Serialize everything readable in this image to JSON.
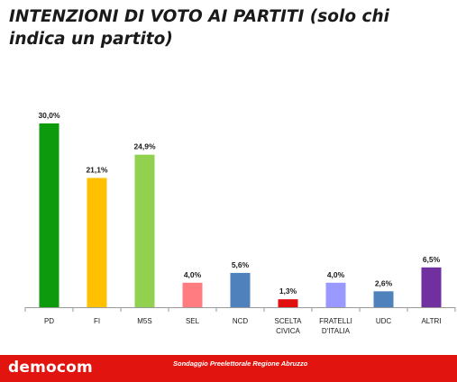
{
  "chart_data": {
    "type": "bar",
    "title": "INTENZIONI DI VOTO AI PARTITI (solo chi indica un partito)",
    "categories": [
      "PD",
      "FI",
      "M5S",
      "SEL",
      "NCD",
      "SCELTA CIVICA",
      "FRATELLI D'ITALIA",
      "UDC",
      "ALTRI"
    ],
    "category_lines": [
      [
        "PD"
      ],
      [
        "FI"
      ],
      [
        "M5S"
      ],
      [
        "SEL"
      ],
      [
        "NCD"
      ],
      [
        "SCELTA",
        "CIVICA"
      ],
      [
        "FRATELLI",
        "D'ITALIA"
      ],
      [
        "UDC"
      ],
      [
        "ALTRI"
      ]
    ],
    "values": [
      30.0,
      21.1,
      24.9,
      4.0,
      5.6,
      1.3,
      4.0,
      2.6,
      6.5
    ],
    "value_labels": [
      "30,0%",
      "21,1%",
      "24,9%",
      "4,0%",
      "5,6%",
      "1,3%",
      "4,0%",
      "2,6%",
      "6,5%"
    ],
    "colors": [
      "#0d9a0d",
      "#ffc000",
      "#92d050",
      "#ff7c80",
      "#4f81bd",
      "#e20f0f",
      "#9999ff",
      "#4f81bd",
      "#7030a0"
    ],
    "ylim": [
      0,
      30
    ],
    "xlabel": "",
    "ylabel": "",
    "grid": false
  },
  "footer": {
    "logo": "democom",
    "note": "Sondaggio Preelettorale Regione Abruzzo",
    "background": "#e2140f"
  }
}
